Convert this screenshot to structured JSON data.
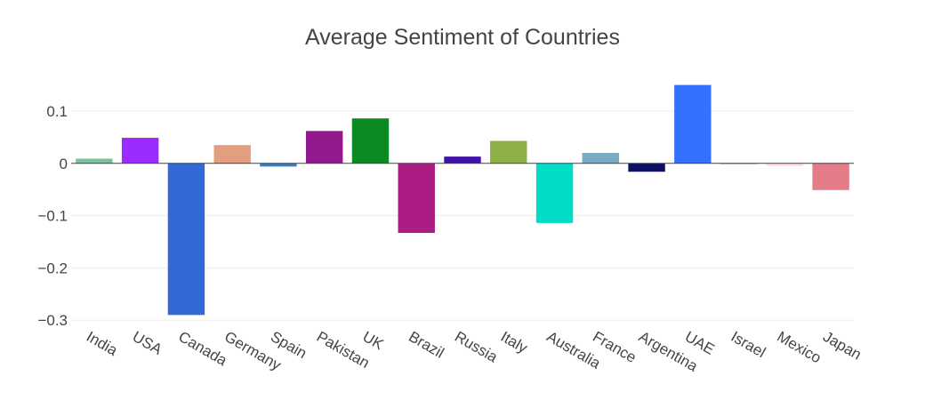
{
  "chart_data": {
    "type": "bar",
    "title": "Average Sentiment of Countries",
    "xlabel": "",
    "ylabel": "",
    "categories": [
      "India",
      "USA",
      "Canada",
      "Germany",
      "Spain",
      "Pakistan",
      "UK",
      "Brazil",
      "Russia",
      "Italy",
      "Australia",
      "France",
      "Argentina",
      "UAE",
      "Israel",
      "Mexico",
      "Japan"
    ],
    "values": [
      0.009,
      0.049,
      -0.29,
      0.035,
      -0.006,
      0.062,
      0.086,
      -0.133,
      0.013,
      0.043,
      -0.114,
      0.02,
      -0.016,
      0.15,
      -0.001,
      -0.005,
      -0.051
    ],
    "colors": [
      "#7bc29c",
      "#9b2bff",
      "#3369d6",
      "#e39e7f",
      "#3f7fb9",
      "#94198f",
      "#0b8a24",
      "#ac1d84",
      "#3e12a6",
      "#8cb045",
      "#00ddc5",
      "#7aabc4",
      "#0d1064",
      "#3571ff",
      "#2e5f4f",
      "#fcdcf0",
      "#e37c88"
    ],
    "yticks": [
      0.1,
      0,
      -0.1,
      -0.2,
      -0.3
    ],
    "ytick_labels": [
      "0.1",
      "0",
      "−0.1",
      "−0.2",
      "−0.3"
    ],
    "ylim": [
      -0.303,
      0.168
    ],
    "grid": true,
    "legend": "none"
  }
}
